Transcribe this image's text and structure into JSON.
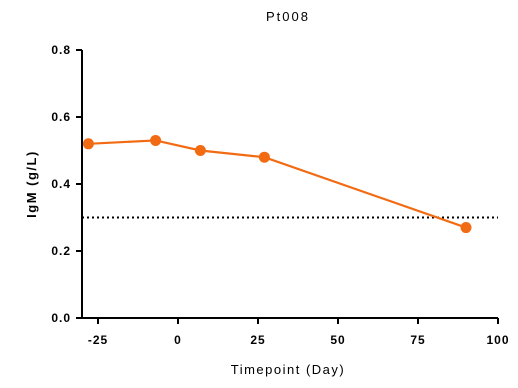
{
  "chart_data": {
    "type": "line",
    "title": "Pt008",
    "xlabel": "Timepoint (Day)",
    "ylabel": "IgM (g/L)",
    "xlim": [
      -30,
      100
    ],
    "ylim": [
      0.0,
      0.8
    ],
    "xticks": [
      -25,
      0,
      25,
      50,
      75,
      100
    ],
    "xtick_labels": [
      "-25",
      "0",
      "25",
      "50",
      "75",
      "100"
    ],
    "yticks": [
      0.0,
      0.2,
      0.4,
      0.6,
      0.8
    ],
    "ytick_labels": [
      "0.0",
      "0.2",
      "0.4",
      "0.6",
      "0.8"
    ],
    "grid": false,
    "series": [
      {
        "color": "#f26b12",
        "x": [
          -28,
          -7,
          7,
          27,
          90
        ],
        "y": [
          0.52,
          0.53,
          0.5,
          0.48,
          0.27
        ]
      }
    ],
    "reference_line": {
      "y": 0.3,
      "style": "dotted",
      "color": "#000000"
    }
  }
}
